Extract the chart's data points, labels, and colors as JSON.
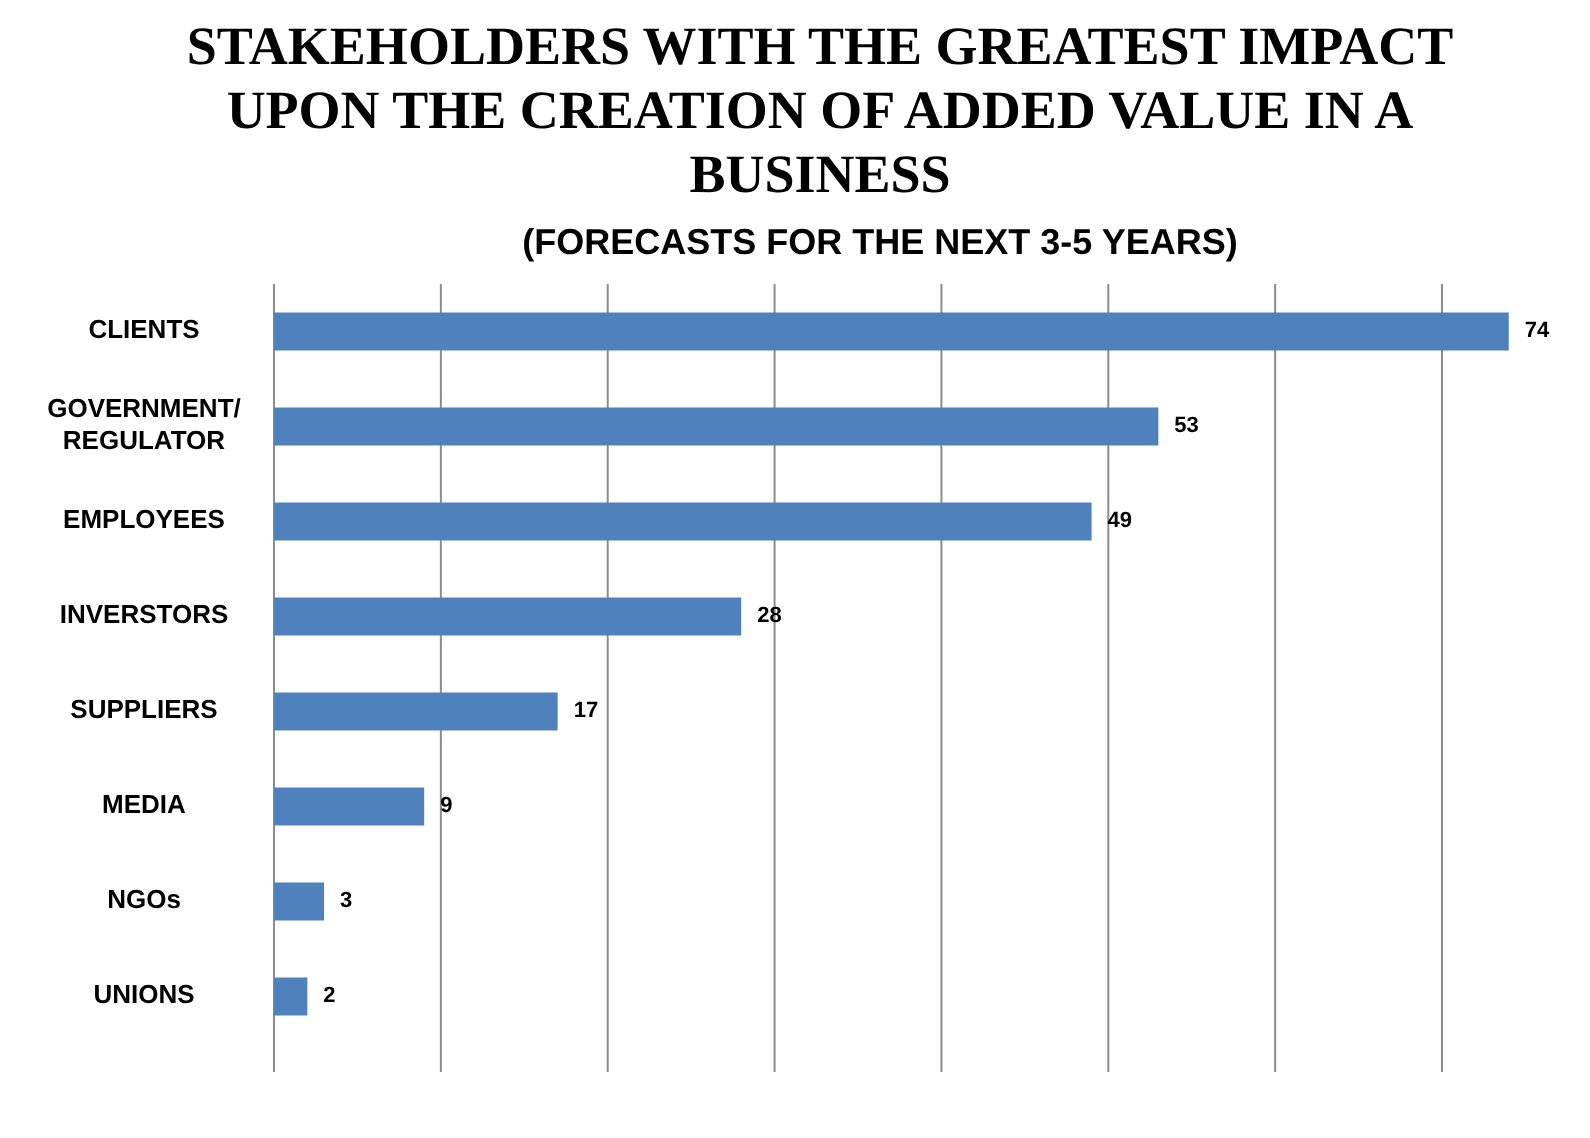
{
  "chart_data": {
    "type": "bar",
    "orientation": "horizontal",
    "title": "STAKEHOLDERS WITH THE GREATEST IMPACT UPON THE CREATION OF ADDED VALUE IN A BUSINESS",
    "subtitle": "(FORECASTS FOR THE NEXT 3-5 YEARS)",
    "categories": [
      "CLIENTS",
      "GOVERNMENT/ REGULATOR",
      "EMPLOYEES",
      "INVERSTORS",
      "SUPPLIERS",
      "MEDIA",
      "NGOs",
      "UNIONS"
    ],
    "values": [
      74,
      53,
      49,
      28,
      17,
      9,
      3,
      2
    ],
    "color": "#4f81bd",
    "data_labels": true,
    "xticks": [
      {
        "value": 0,
        "label": null
      },
      {
        "value": 10,
        "label": null
      },
      {
        "value": 20,
        "label": null
      },
      {
        "value": 30,
        "label": null
      },
      {
        "value": 40,
        "label": null
      },
      {
        "value": 50,
        "label": null
      },
      {
        "value": 60,
        "label": null
      },
      {
        "value": 70,
        "label": null
      }
    ],
    "grid": "x",
    "tick_labels": "y"
  }
}
